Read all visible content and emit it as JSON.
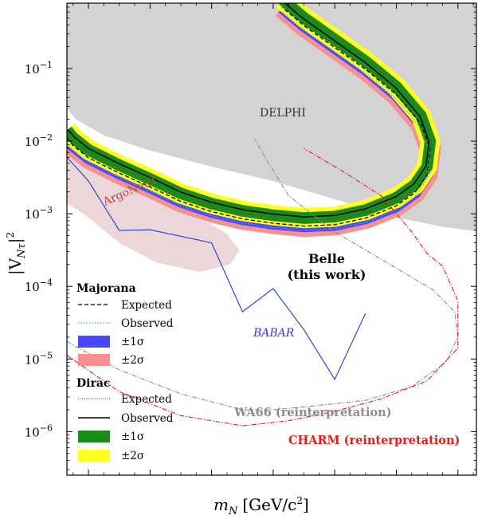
{
  "chart_data": {
    "type": "line",
    "xlabel_main": "m",
    "xlabel_sub": "N",
    "xlabel_units": "[GeV/c",
    "xlabel_units_sup": "2",
    "xlabel_units_close": "]",
    "ylabel_main": "|V",
    "ylabel_sub": "Nτ",
    "ylabel_close": "|",
    "ylabel_sup": "2",
    "xlim": [
      0.33,
      1.66
    ],
    "ylim_exp": [
      -6.6,
      -0.1
    ],
    "y_log_scale": true,
    "grid": false,
    "x_ticks": [
      0.4,
      0.6,
      0.8,
      1.0,
      1.2,
      1.4,
      1.6
    ],
    "x_tick_labels": [
      "0.4",
      "0.6",
      "0.8",
      "1.0",
      "1.2",
      "1.4",
      "1.6"
    ],
    "y_tick_exps": [
      -1,
      -2,
      -3,
      -4,
      -5,
      -6
    ],
    "y_tick_base": "10",
    "y_tick_sups": [
      "−1",
      "−2",
      "−3",
      "−4",
      "−5",
      "−6"
    ],
    "regions": [
      {
        "label": "DELPHI",
        "color": "#d3d3d3",
        "bounds": [
          [
            0.33,
            -0.1
          ],
          [
            0.33,
            -1.55
          ],
          [
            0.36,
            -1.7
          ],
          [
            0.45,
            -1.92
          ],
          [
            0.6,
            -2.13
          ],
          [
            0.8,
            -2.35
          ],
          [
            1.0,
            -2.55
          ],
          [
            1.2,
            -2.8
          ],
          [
            1.4,
            -3.05
          ],
          [
            1.55,
            -3.18
          ],
          [
            1.66,
            -3.24
          ],
          [
            1.66,
            -0.1
          ]
        ]
      },
      {
        "label": "ArgoNeuT",
        "color": "#c58b8b",
        "opacity": 0.35,
        "bounds": [
          [
            0.33,
            -0.7
          ],
          [
            0.33,
            -2.05
          ],
          [
            0.45,
            -2.45
          ],
          [
            0.6,
            -2.78
          ],
          [
            0.72,
            -3.0
          ],
          [
            0.8,
            -3.15
          ],
          [
            0.85,
            -3.28
          ],
          [
            0.89,
            -3.5
          ],
          [
            0.86,
            -3.7
          ],
          [
            0.76,
            -3.8
          ],
          [
            0.62,
            -3.67
          ],
          [
            0.5,
            -3.4
          ],
          [
            0.4,
            -3.05
          ],
          [
            0.33,
            -2.85
          ],
          [
            0.33,
            -2.05
          ],
          [
            0.33,
            -0.7
          ]
        ]
      }
    ],
    "series": [
      {
        "name": "BABAR",
        "color": "#1f3bdb",
        "style": "solid",
        "points": [
          [
            0.33,
            -2.22
          ],
          [
            0.4,
            -2.55
          ],
          [
            0.5,
            -3.23
          ],
          [
            0.6,
            -3.22
          ],
          [
            0.8,
            -3.4
          ],
          [
            0.9,
            -4.35
          ],
          [
            1.0,
            -4.03
          ],
          [
            1.1,
            -4.6
          ],
          [
            1.2,
            -5.28
          ],
          [
            1.3,
            -4.37
          ]
        ]
      },
      {
        "name": "WA66 (reinterpretation)",
        "color": "#8c8c8c",
        "style": "dashdot",
        "points": [
          [
            0.33,
            -4.76
          ],
          [
            0.5,
            -5.15
          ],
          [
            0.7,
            -5.48
          ],
          [
            0.9,
            -5.7
          ],
          [
            1.0,
            -5.7
          ],
          [
            1.1,
            -5.66
          ],
          [
            1.3,
            -5.57
          ],
          [
            1.45,
            -5.38
          ],
          [
            1.56,
            -5.05
          ],
          [
            1.6,
            -4.7
          ],
          [
            1.59,
            -4.35
          ],
          [
            1.52,
            -4.05
          ],
          [
            1.4,
            -3.75
          ],
          [
            1.2,
            -3.25
          ],
          [
            1.05,
            -2.75
          ],
          [
            0.98,
            -2.27
          ],
          [
            0.94,
            -1.97
          ]
        ]
      },
      {
        "name": "CHARM (reinterpretation)",
        "color": "#e61c1c",
        "style": "dashdot",
        "points": [
          [
            0.33,
            -4.95
          ],
          [
            0.5,
            -5.45
          ],
          [
            0.7,
            -5.78
          ],
          [
            0.9,
            -5.92
          ],
          [
            1.05,
            -5.85
          ],
          [
            1.2,
            -5.72
          ],
          [
            1.35,
            -5.55
          ],
          [
            1.5,
            -5.3
          ],
          [
            1.6,
            -4.85
          ],
          [
            1.6,
            -4.2
          ],
          [
            1.55,
            -3.72
          ],
          [
            1.5,
            -3.55
          ],
          [
            1.45,
            -3.25
          ],
          [
            1.35,
            -2.75
          ],
          [
            1.22,
            -2.4
          ],
          [
            1.1,
            -2.1
          ]
        ]
      }
    ],
    "belle_band": {
      "spine": [
        [
          0.33,
          -1.85
        ],
        [
          0.35,
          -1.95
        ],
        [
          0.4,
          -2.12
        ],
        [
          0.5,
          -2.33
        ],
        [
          0.6,
          -2.52
        ],
        [
          0.7,
          -2.72
        ],
        [
          0.8,
          -2.86
        ],
        [
          0.9,
          -2.96
        ],
        [
          1.0,
          -3.02
        ],
        [
          1.1,
          -3.06
        ],
        [
          1.2,
          -3.04
        ],
        [
          1.3,
          -2.95
        ],
        [
          1.4,
          -2.78
        ],
        [
          1.46,
          -2.6
        ],
        [
          1.5,
          -2.35
        ],
        [
          1.51,
          -2.0
        ],
        [
          1.48,
          -1.65
        ],
        [
          1.4,
          -1.25
        ],
        [
          1.3,
          -0.9
        ],
        [
          1.2,
          -0.6
        ],
        [
          1.1,
          -0.3
        ],
        [
          1.03,
          -0.05
        ]
      ],
      "majorana_upper": [
        [
          0.33,
          -1.82
        ],
        [
          0.5,
          -2.32
        ],
        [
          0.7,
          -2.7
        ],
        [
          0.9,
          -2.95
        ],
        [
          1.1,
          -3.05
        ],
        [
          1.3,
          -2.93
        ],
        [
          1.45,
          -2.62
        ],
        [
          1.52,
          -2.2
        ],
        [
          1.49,
          -1.7
        ],
        [
          1.35,
          -1.1
        ],
        [
          1.2,
          -0.64
        ],
        [
          1.0,
          -0.05
        ],
        [
          0.92,
          -0.05
        ],
        [
          1.1,
          -0.62
        ],
        [
          1.25,
          -1.02
        ],
        [
          1.38,
          -1.42
        ],
        [
          1.45,
          -1.82
        ],
        [
          1.47,
          -2.15
        ],
        [
          1.44,
          -2.45
        ],
        [
          1.32,
          -2.75
        ],
        [
          1.15,
          -2.92
        ],
        [
          0.95,
          -2.92
        ],
        [
          0.75,
          -2.76
        ],
        [
          0.55,
          -2.45
        ],
        [
          0.4,
          -2.18
        ],
        [
          0.33,
          -2.0
        ]
      ],
      "majorana_observed_shift": -0.06,
      "band_widths": {
        "dirac_2sigma": 0.28,
        "dirac_1sigma": 0.16,
        "majorana_2sigma": 0.3,
        "majorana_1sigma": 0.17
      }
    },
    "colors": {
      "delphi": "#d3d3d3",
      "argoneut": "#c58b8b",
      "babar": "#1f3bdb",
      "wa66": "#8c8c8c",
      "charm": "#e61c1c",
      "majorana_1sigma": "#4848ff",
      "majorana_2sigma": "#f79191",
      "dirac_1sigma": "#1a8c1a",
      "dirac_2sigma": "#ffff26",
      "line_black": "#000000",
      "line_observed_blue": "#4fa3e6"
    },
    "annotations": {
      "delphi": "DELPHI",
      "argoneut": "ArgoNeuT",
      "babar": "BABAR",
      "belle_line1": "Belle",
      "belle_line2": "(this work)",
      "wa66": "WA66 (reinterpretation)",
      "charm": "CHARM (reinterpretation)"
    },
    "legend": {
      "placement": "lower-left",
      "majorana_title": "Majorana",
      "majorana_items": [
        {
          "label": "Expected",
          "kind": "dashed-black"
        },
        {
          "label": "Observed",
          "kind": "dotted-blue"
        },
        {
          "label": "±1σ",
          "kind": "patch-majorana-1sigma"
        },
        {
          "label": "±2σ",
          "kind": "patch-majorana-2sigma"
        }
      ],
      "dirac_title": "Dirac",
      "dirac_items": [
        {
          "label": "Expected",
          "kind": "dotted-black"
        },
        {
          "label": "Observed",
          "kind": "solid-black"
        },
        {
          "label": "±1σ",
          "kind": "patch-dirac-1sigma"
        },
        {
          "label": "±2σ",
          "kind": "patch-dirac-2sigma"
        }
      ]
    }
  }
}
